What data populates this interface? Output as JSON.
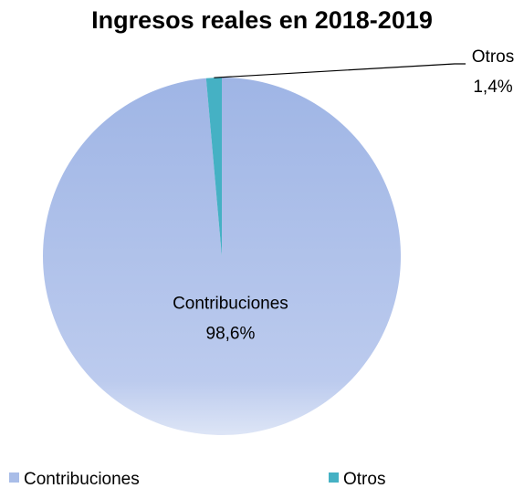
{
  "chart_data": {
    "type": "pie",
    "title": "Ingresos reales en 2018-2019",
    "categories": [
      "Contribuciones",
      "Otros"
    ],
    "values": [
      98.6,
      1.4
    ],
    "value_labels": [
      "98,6%",
      "1,4%"
    ],
    "colors": [
      "#a9bde8",
      "#45b1c4"
    ],
    "legend": "bottom"
  }
}
